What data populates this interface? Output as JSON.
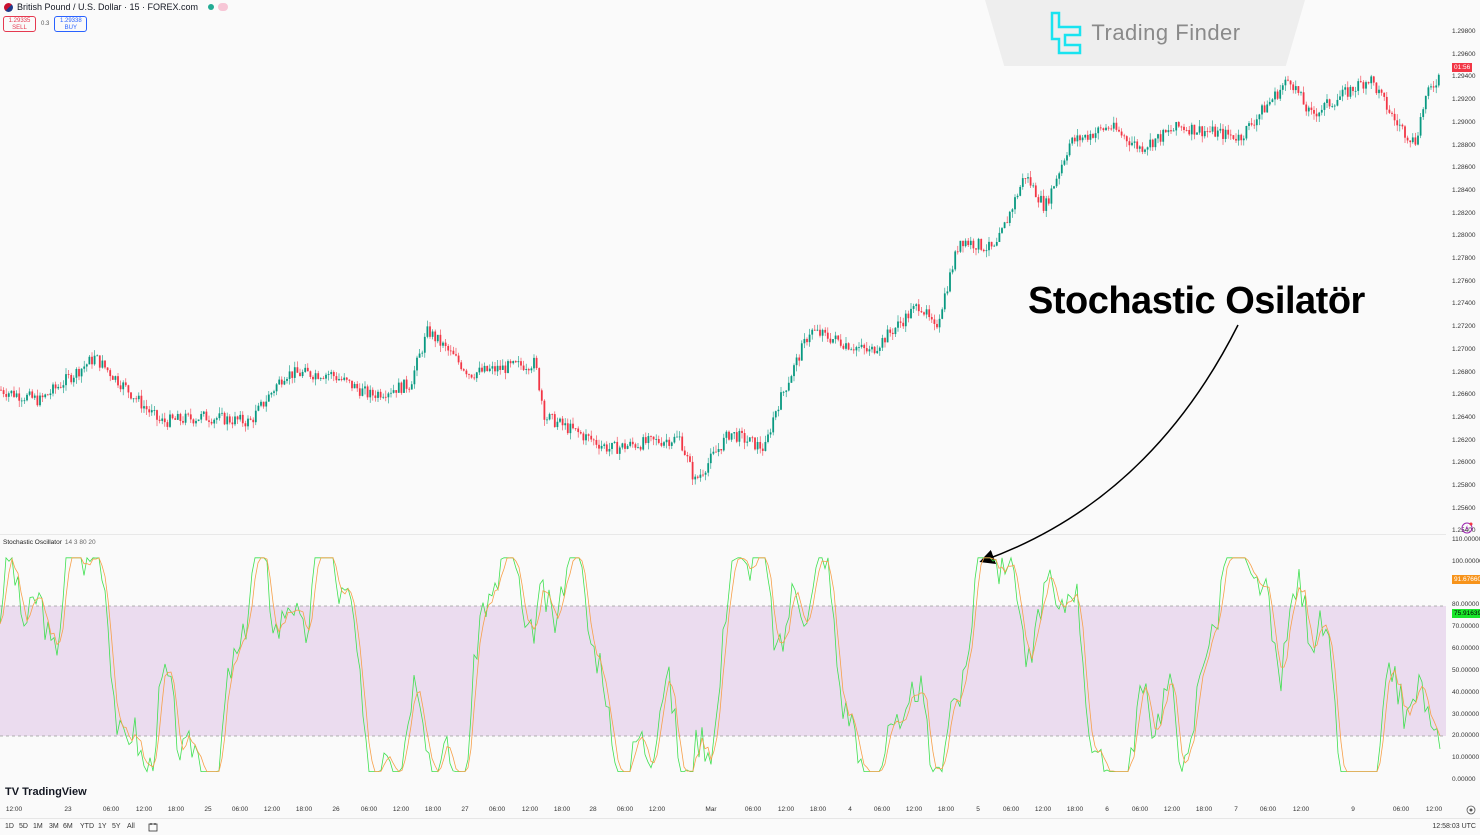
{
  "header": {
    "symbol_title": "British Pound / U.S. Dollar · 15 · FOREX.com",
    "sell_price": "1.29335",
    "sell_label": "SELL",
    "spread": "0.3",
    "buy_price": "1.29338",
    "buy_label": "BUY"
  },
  "watermark": {
    "brand": "Trading Finder",
    "accent": "#19d3e6"
  },
  "annotation": {
    "text": "Stochastic Osilatör"
  },
  "price_axis": {
    "labels": [
      "1.29800",
      "1.29600",
      "1.29400",
      "1.29200",
      "1.29000",
      "1.28800",
      "1.28600",
      "1.28400",
      "1.28200",
      "1.28000",
      "1.27800",
      "1.27600",
      "1.27400",
      "1.27200",
      "1.27000",
      "1.26800",
      "1.26600",
      "1.26400",
      "1.26200",
      "1.26000",
      "1.25800",
      "1.25600",
      "1.25400"
    ],
    "current_tag": "01:56",
    "current_tag_color": "#f23645"
  },
  "indicator": {
    "name": "Stochastic Oscillator",
    "params": "14 3 80 20",
    "axis_labels": [
      "110.00000",
      "100.00000",
      "80.00000",
      "70.00000",
      "60.00000",
      "50.00000",
      "40.00000",
      "30.00000",
      "20.00000",
      "10.00000",
      "0.00000"
    ],
    "d_value": "91.67660",
    "d_color": "#f7931a",
    "k_value": "75.91639",
    "k_color": "#19e62b",
    "band_color": "#ebdcef"
  },
  "time_axis": {
    "labels": [
      "12:00",
      "23",
      "06:00",
      "12:00",
      "18:00",
      "25",
      "06:00",
      "12:00",
      "18:00",
      "26",
      "06:00",
      "12:00",
      "18:00",
      "27",
      "06:00",
      "12:00",
      "18:00",
      "28",
      "06:00",
      "12:00",
      "Mar",
      "06:00",
      "12:00",
      "18:00",
      "4",
      "06:00",
      "12:00",
      "18:00",
      "5",
      "06:00",
      "12:00",
      "18:00",
      "6",
      "06:00",
      "12:00",
      "18:00",
      "7",
      "06:00",
      "12:00",
      "9",
      "06:00",
      "12:00"
    ]
  },
  "footer": {
    "ranges": [
      "1D",
      "5D",
      "1M",
      "3M",
      "6M",
      "YTD",
      "1Y",
      "5Y",
      "All"
    ],
    "clock": "12:58:03 UTC",
    "brand": "TradingView"
  },
  "chart_data": [
    {
      "type": "candlestick",
      "title": "British Pound / U.S. Dollar · 15 · FOREX.com",
      "ylabel": "Price",
      "ylim": [
        1.253,
        1.2985
      ],
      "x": [
        "22 12:00",
        "23",
        "24",
        "25",
        "26",
        "27",
        "28",
        "Mar 1",
        "3",
        "4",
        "5",
        "6",
        "7",
        "9",
        "9 12:00"
      ],
      "approx_close": [
        1.2648,
        1.2668,
        1.2615,
        1.2632,
        1.2658,
        1.2675,
        1.2595,
        1.261,
        1.2715,
        1.2795,
        1.287,
        1.2895,
        1.2885,
        1.293,
        1.2944
      ],
      "colors": {
        "up": "#089981",
        "down": "#f23645"
      }
    },
    {
      "type": "line",
      "title": "Stochastic Oscillator 14 3 80 20",
      "ylim": [
        0,
        110
      ],
      "series": [
        {
          "name": "%K",
          "color": "#19e62b",
          "last": 75.91639
        },
        {
          "name": "%D",
          "color": "#f7931a",
          "last": 91.6766
        }
      ],
      "bands": {
        "upper": 80,
        "lower": 20
      }
    }
  ]
}
